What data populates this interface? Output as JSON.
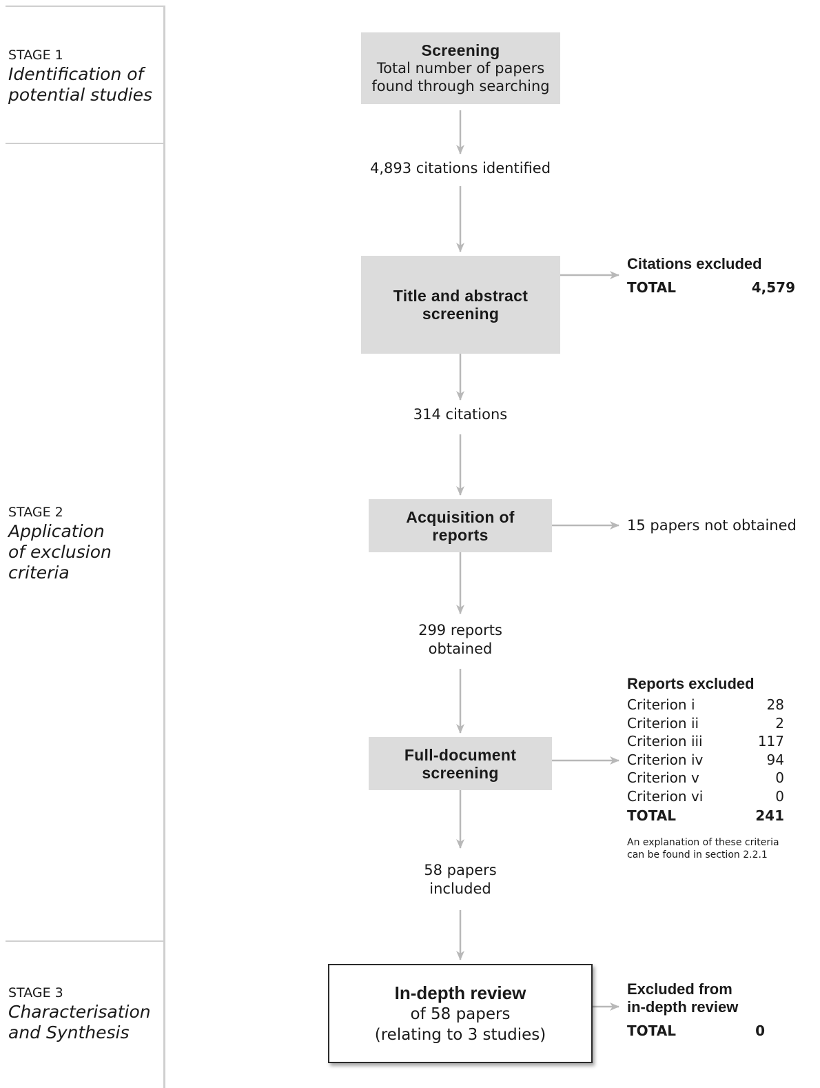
{
  "stages": [
    {
      "label": "STAGE 1",
      "title_lines": [
        "Identification of",
        "potential studies"
      ]
    },
    {
      "label": "STAGE 2",
      "title_lines": [
        "Application",
        "of exclusion",
        "criteria"
      ]
    },
    {
      "label": "STAGE 3",
      "title_lines": [
        "Characterisation",
        "and Synthesis"
      ]
    }
  ],
  "screening": {
    "title": "Screening",
    "line1": "Total number of papers",
    "line2": "found through searching"
  },
  "identified": "4,893 citations identified",
  "title_abstract": {
    "line1": "Title and abstract",
    "line2": "screening"
  },
  "citations_excluded": {
    "heading": "Citations excluded",
    "total_label": "TOTAL",
    "total_value": "4,579"
  },
  "citations_314": "314 citations",
  "acquisition": {
    "line1": "Acquisition of",
    "line2": "reports"
  },
  "not_obtained": "15 papers not obtained",
  "reports_obtained": {
    "line1": "299 reports",
    "line2": "obtained"
  },
  "full_document": {
    "line1": "Full-document",
    "line2": "screening"
  },
  "reports_excluded": {
    "heading": "Reports excluded",
    "criteria": [
      {
        "label": "Criterion i",
        "value": "28"
      },
      {
        "label": "Criterion ii",
        "value": "2"
      },
      {
        "label": "Criterion iii",
        "value": "117"
      },
      {
        "label": "Criterion iv",
        "value": "94"
      },
      {
        "label": "Criterion v",
        "value": "0"
      },
      {
        "label": "Criterion vi",
        "value": "0"
      }
    ],
    "total_label": "TOTAL",
    "total_value": "241",
    "note_line1": "An explanation of these criteria",
    "note_line2": "can be found in section 2.2.1"
  },
  "papers_included": {
    "line1": "58 papers",
    "line2": "included"
  },
  "in_depth": {
    "title": "In-depth review",
    "line1": "of 58 papers",
    "line2": "(relating to 3 studies)"
  },
  "excluded_in_depth": {
    "heading_line1": "Excluded from",
    "heading_line2": "in-depth review",
    "total_label": "TOTAL",
    "total_value": "0"
  },
  "colors": {
    "box_fill": "#dcdcdc",
    "arrow": "#b8b8b8",
    "rule": "#cfcfcf"
  }
}
